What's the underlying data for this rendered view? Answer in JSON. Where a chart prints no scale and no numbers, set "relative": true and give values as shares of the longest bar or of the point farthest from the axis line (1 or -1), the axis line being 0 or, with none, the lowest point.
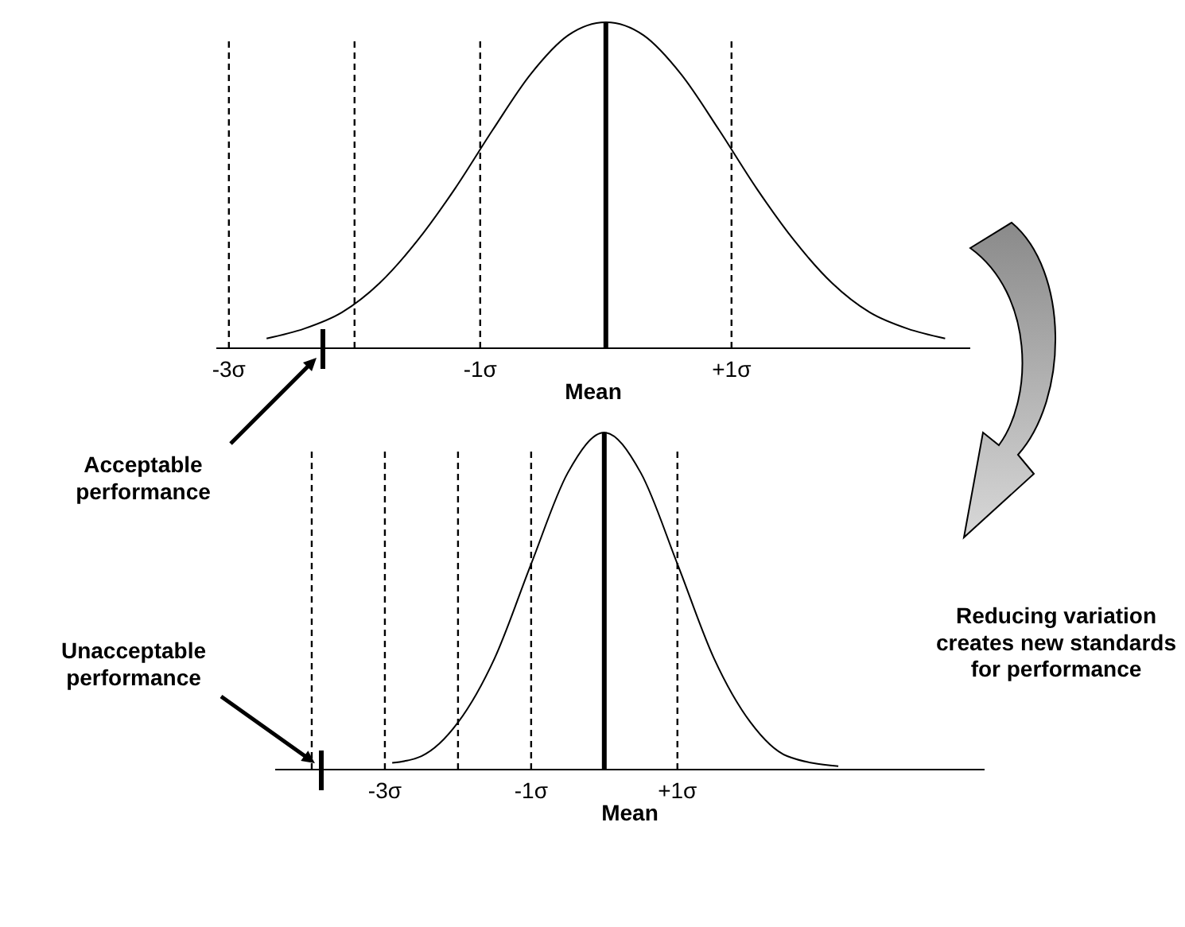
{
  "chart_data": [
    {
      "type": "line",
      "relative": true,
      "xlim": [
        -3.1,
        2.9
      ],
      "xticks": [
        {
          "value": -3,
          "label": "-3σ"
        },
        {
          "value": -1,
          "label": "-1σ"
        },
        {
          "value": 1,
          "label": "+1σ"
        }
      ],
      "xlabel": "Mean",
      "tick_labels": "x",
      "series": [
        {
          "color": "#000000",
          "x": [
            -2.7,
            -2.4,
            -2.1,
            -1.8,
            -1.5,
            -1.2,
            -0.9,
            -0.6,
            -0.3,
            0,
            0.3,
            0.6,
            0.9,
            1.2,
            1.5,
            1.8,
            2.1,
            2.4,
            2.7
          ],
          "values": [
            0.03,
            0.06,
            0.11,
            0.2,
            0.33,
            0.49,
            0.67,
            0.84,
            0.96,
            1,
            0.96,
            0.84,
            0.67,
            0.49,
            0.33,
            0.2,
            0.11,
            0.06,
            0.03
          ]
        }
      ],
      "ref_lines": [
        {
          "axis": "x",
          "value": -3,
          "line_style": "dashed"
        },
        {
          "axis": "x",
          "value": -2,
          "line_style": "dashed"
        },
        {
          "axis": "x",
          "value": -1,
          "line_style": "dashed"
        },
        {
          "axis": "x",
          "value": 1,
          "line_style": "dashed"
        },
        {
          "axis": "x",
          "value": 0,
          "line_style": "solid"
        }
      ],
      "annotations": [
        "Acceptable performance"
      ]
    },
    {
      "type": "line",
      "relative": true,
      "xlim": [
        -4.5,
        5.2
      ],
      "xticks": [
        {
          "value": -3,
          "label": "-3σ"
        },
        {
          "value": -1,
          "label": "-1σ"
        },
        {
          "value": 1,
          "label": "+1σ"
        }
      ],
      "xlabel": "Mean",
      "tick_labels": "x",
      "series": [
        {
          "color": "#000000",
          "x": [
            -2.9,
            -2.5,
            -2,
            -1.5,
            -1,
            -0.5,
            0,
            0.5,
            1,
            1.5,
            2,
            2.5,
            3.2
          ],
          "values": [
            0.02,
            0.04,
            0.14,
            0.33,
            0.61,
            0.88,
            1,
            0.88,
            0.61,
            0.33,
            0.14,
            0.04,
            0.01
          ]
        }
      ],
      "ref_lines": [
        {
          "axis": "x",
          "value": -4,
          "line_style": "dashed"
        },
        {
          "axis": "x",
          "value": -3,
          "line_style": "dashed"
        },
        {
          "axis": "x",
          "value": -2,
          "line_style": "dashed"
        },
        {
          "axis": "x",
          "value": -1,
          "line_style": "dashed"
        },
        {
          "axis": "x",
          "value": 1,
          "line_style": "dashed"
        },
        {
          "axis": "x",
          "value": 0,
          "line_style": "solid"
        }
      ],
      "annotations": [
        "Unacceptable performance",
        "Reducing variation creates new standards for performance"
      ]
    }
  ]
}
